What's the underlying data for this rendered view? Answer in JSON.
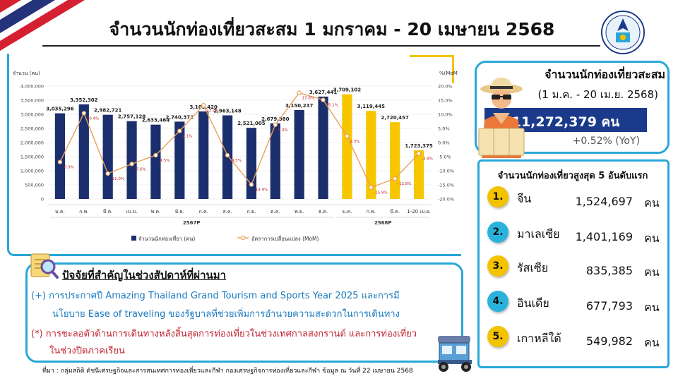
{
  "header": {
    "title": "จำนวนนักท่องเที่ยวสะสม 1 มกราคม - 20 เมษายน 2568"
  },
  "colors": {
    "bar_2024": "#1b2f6e",
    "bar_2025": "#f6c600",
    "line": "#e8a15a",
    "accent": "#29a7d8",
    "total_box": "#1b3a8c"
  },
  "chart_data": {
    "type": "bar",
    "ylabel_left": "จำนวน (คน)",
    "ylabel_right": "%(MoM)",
    "ylim_left": [
      0,
      4000000
    ],
    "ylim_right": [
      -20,
      20
    ],
    "yticks_left": [
      "4,000,000",
      "3,500,000",
      "3,000,000",
      "2,500,000",
      "2,000,000",
      "1,500,000",
      "1,000,000",
      "500,000",
      "0"
    ],
    "yticks_right": [
      "20.0%",
      "15.0%",
      "10.0%",
      "5.0%",
      "0.0%",
      "-5.0%",
      "-10.0%",
      "-15.0%",
      "-20.0%"
    ],
    "categories": [
      "ม.ค.",
      "ก.พ.",
      "มี.ค.",
      "เม.ย.",
      "พ.ค.",
      "มิ.ย.",
      "ก.ค.",
      "ส.ค.",
      "ก.ย.",
      "ต.ค.",
      "พ.ย.",
      "ธ.ค.",
      "ม.ค.",
      "ก.พ.",
      "มี.ค.",
      "1-20 เม.ย."
    ],
    "groups": [
      {
        "label": "2567P",
        "start": 0,
        "end": 11
      },
      {
        "label": "2568P",
        "start": 12,
        "end": 15
      }
    ],
    "series": [
      {
        "name": "จำนวนนักท่องเที่ยว (คน)",
        "values": [
          3035296,
          3352302,
          2982721,
          2757128,
          2633464,
          2740372,
          3103420,
          2963148,
          2521005,
          2679380,
          3150237,
          3627441,
          3709102,
          3119445,
          2720457,
          1723375
        ],
        "labels": [
          "3,035,296",
          "3,352,302",
          "2,982,721",
          "2,757,128",
          "2,633,464",
          "2,740,372",
          "3,103,420",
          "2,963,148",
          "2,521,005",
          "2,679,380",
          "3,150,237",
          "3,627,441",
          "3,709,102",
          "3,119,445",
          "2,720,457",
          "1,723,375"
        ]
      },
      {
        "name": "อัตราการเปลี่ยนแปลง (MoM)",
        "values": [
          -6.9,
          10.4,
          -11.0,
          -7.6,
          -4.5,
          4.1,
          13.2,
          -4.5,
          -14.9,
          6.3,
          17.6,
          15.1,
          2.3,
          -15.9,
          -12.8,
          -3.9
        ],
        "labels": [
          "-6.9%",
          "10.4%",
          "-11.0%",
          "-7.6%",
          "-4.5%",
          "4.1%",
          "13.2%",
          "-4.5%",
          "-14.9%",
          "6.3%",
          "17.6%",
          "15.1%",
          "2.3%",
          "-15.9%",
          "-12.8%",
          "-3.9%"
        ]
      }
    ]
  },
  "summary": {
    "title": "จำนวนนักท่องเที่ยวสะสม",
    "period": "(1 ม.ค. - 20 เม.ย. 2568)",
    "total": "11,272,379 คน",
    "yoy": "+0.52% (YoY)"
  },
  "top5": {
    "title": "จำนวนนักท่องเที่ยวสูงสุด 5 อันดับแรก",
    "unit": "คน",
    "items": [
      {
        "rank": "1.",
        "country": "จีน",
        "value": "1,524,697",
        "color": "#f4c300"
      },
      {
        "rank": "2.",
        "country": "มาเลเซีย",
        "value": "1,401,169",
        "color": "#29b3dc"
      },
      {
        "rank": "3.",
        "country": "รัสเซีย",
        "value": "835,385",
        "color": "#f4c300"
      },
      {
        "rank": "4.",
        "country": "อินเดีย",
        "value": "677,793",
        "color": "#29b3dc"
      },
      {
        "rank": "5.",
        "country": "เกาหลีใต้",
        "value": "549,982",
        "color": "#f4c300"
      }
    ]
  },
  "factors": {
    "title": "ปัจจัยที่สำคัญในช่วงสัปดาห์ที่ผ่านมา",
    "positive_line1": "(+) การประกาศปี Amazing Thailand Grand Tourism and Sports Year 2025 และการมี",
    "positive_line2": "นโยบาย Ease of traveling ของรัฐบาลที่ช่วยเพิ่มการอำนวยความสะดวกในการเดินทาง",
    "negative_line1": "(*) การชะลอตัวด้านการเดินทางหลังสิ้นสุดการท่องเที่ยวในช่วงเทศกาลสงกรานต์ และการท่องเที่ยว",
    "negative_line2": "ในช่วงปิดภาคเรียน"
  },
  "source": "ที่มา : กลุ่มสถิติ ดัชนีเศรษฐกิจและสารสนเทศการท่องเที่ยวและกีฬา กองเศรษฐกิจการท่องเที่ยวและกีฬา ข้อมูล ณ วันที่ 22 เมษายน 2568"
}
